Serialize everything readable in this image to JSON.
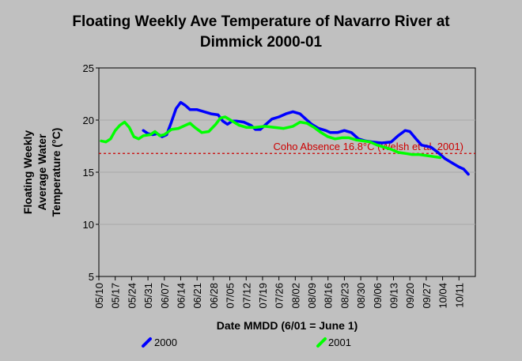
{
  "chart_data": {
    "type": "line",
    "title_line1": "Floating Weekly Ave Temperature of Navarro River at",
    "title_line2": "Dimmick 2000-01",
    "xlabel": "Date MMDD (6/01 = June 1)",
    "ylabel_lines": [
      "Floating Weekly",
      "Average Water",
      "Temperature (°C)"
    ],
    "ylim": [
      5,
      25
    ],
    "yticks": [
      5,
      10,
      15,
      20,
      25
    ],
    "xlim": [
      "05/10",
      "10/18"
    ],
    "xticks": [
      "05/10",
      "05/17",
      "05/24",
      "05/31",
      "06/07",
      "06/14",
      "06/21",
      "06/28",
      "07/05",
      "07/12",
      "07/19",
      "07/26",
      "08/02",
      "08/09",
      "08/16",
      "08/23",
      "08/30",
      "09/06",
      "09/13",
      "09/20",
      "09/27",
      "10/04",
      "10/11"
    ],
    "grid": true,
    "legend": "bottom",
    "threshold": {
      "value": 16.8,
      "label": "Coho Absence 16.8°C (Welsh et al. 2001)",
      "color": "#cc0000"
    },
    "series": [
      {
        "name": "2000",
        "color": "#0000ff",
        "points": [
          [
            "05/29",
            19.0
          ],
          [
            "05/31",
            18.7
          ],
          [
            "06/02",
            18.6
          ],
          [
            "06/04",
            18.7
          ],
          [
            "06/06",
            18.4
          ],
          [
            "06/08",
            18.6
          ],
          [
            "06/10",
            19.8
          ],
          [
            "06/12",
            21.1
          ],
          [
            "06/14",
            21.7
          ],
          [
            "06/16",
            21.4
          ],
          [
            "06/18",
            21.0
          ],
          [
            "06/21",
            21.0
          ],
          [
            "06/24",
            20.8
          ],
          [
            "06/27",
            20.6
          ],
          [
            "06/30",
            20.5
          ],
          [
            "07/02",
            19.9
          ],
          [
            "07/04",
            19.6
          ],
          [
            "07/06",
            19.9
          ],
          [
            "07/08",
            19.9
          ],
          [
            "07/11",
            19.8
          ],
          [
            "07/14",
            19.5
          ],
          [
            "07/16",
            19.1
          ],
          [
            "07/18",
            19.1
          ],
          [
            "07/20",
            19.5
          ],
          [
            "07/23",
            20.1
          ],
          [
            "07/26",
            20.3
          ],
          [
            "07/29",
            20.6
          ],
          [
            "08/01",
            20.8
          ],
          [
            "08/04",
            20.6
          ],
          [
            "08/06",
            20.2
          ],
          [
            "08/09",
            19.6
          ],
          [
            "08/12",
            19.2
          ],
          [
            "08/15",
            19.0
          ],
          [
            "08/17",
            18.8
          ],
          [
            "08/20",
            18.8
          ],
          [
            "08/23",
            19.0
          ],
          [
            "08/26",
            18.8
          ],
          [
            "08/29",
            18.2
          ],
          [
            "09/01",
            18.0
          ],
          [
            "09/04",
            17.9
          ],
          [
            "09/08",
            17.8
          ],
          [
            "09/12",
            17.9
          ],
          [
            "09/15",
            18.5
          ],
          [
            "09/18",
            19.0
          ],
          [
            "09/20",
            18.9
          ],
          [
            "09/23",
            18.1
          ],
          [
            "09/25",
            17.6
          ],
          [
            "09/29",
            17.4
          ],
          [
            "10/02",
            16.9
          ],
          [
            "10/05",
            16.3
          ],
          [
            "10/08",
            15.9
          ],
          [
            "10/11",
            15.5
          ],
          [
            "10/13",
            15.3
          ],
          [
            "10/15",
            14.8
          ]
        ]
      },
      {
        "name": "2001",
        "color": "#00ff00",
        "points": [
          [
            "05/11",
            18.0
          ],
          [
            "05/13",
            17.9
          ],
          [
            "05/15",
            18.2
          ],
          [
            "05/17",
            19.0
          ],
          [
            "05/19",
            19.5
          ],
          [
            "05/21",
            19.8
          ],
          [
            "05/23",
            19.3
          ],
          [
            "05/25",
            18.4
          ],
          [
            "05/27",
            18.2
          ],
          [
            "05/29",
            18.5
          ],
          [
            "06/01",
            18.6
          ],
          [
            "06/03",
            18.9
          ],
          [
            "06/05",
            18.5
          ],
          [
            "06/07",
            18.6
          ],
          [
            "06/10",
            19.1
          ],
          [
            "06/13",
            19.2
          ],
          [
            "06/16",
            19.5
          ],
          [
            "06/18",
            19.7
          ],
          [
            "06/20",
            19.3
          ],
          [
            "06/23",
            18.8
          ],
          [
            "06/26",
            18.9
          ],
          [
            "06/29",
            19.6
          ],
          [
            "07/01",
            20.2
          ],
          [
            "07/03",
            20.3
          ],
          [
            "07/06",
            19.9
          ],
          [
            "07/09",
            19.5
          ],
          [
            "07/12",
            19.3
          ],
          [
            "07/16",
            19.3
          ],
          [
            "07/20",
            19.4
          ],
          [
            "07/24",
            19.3
          ],
          [
            "07/28",
            19.2
          ],
          [
            "08/01",
            19.4
          ],
          [
            "08/04",
            19.8
          ],
          [
            "08/07",
            19.7
          ],
          [
            "08/10",
            19.3
          ],
          [
            "08/13",
            18.8
          ],
          [
            "08/16",
            18.4
          ],
          [
            "08/19",
            18.2
          ],
          [
            "08/22",
            18.3
          ],
          [
            "08/25",
            18.3
          ],
          [
            "08/28",
            18.1
          ],
          [
            "08/31",
            18.0
          ],
          [
            "09/03",
            17.9
          ],
          [
            "09/06",
            17.6
          ],
          [
            "09/09",
            17.4
          ],
          [
            "09/12",
            17.2
          ],
          [
            "09/15",
            16.9
          ],
          [
            "09/18",
            16.8
          ],
          [
            "09/21",
            16.7
          ],
          [
            "09/24",
            16.7
          ],
          [
            "09/27",
            16.6
          ],
          [
            "09/30",
            16.5
          ],
          [
            "10/03",
            16.4
          ]
        ]
      }
    ]
  }
}
